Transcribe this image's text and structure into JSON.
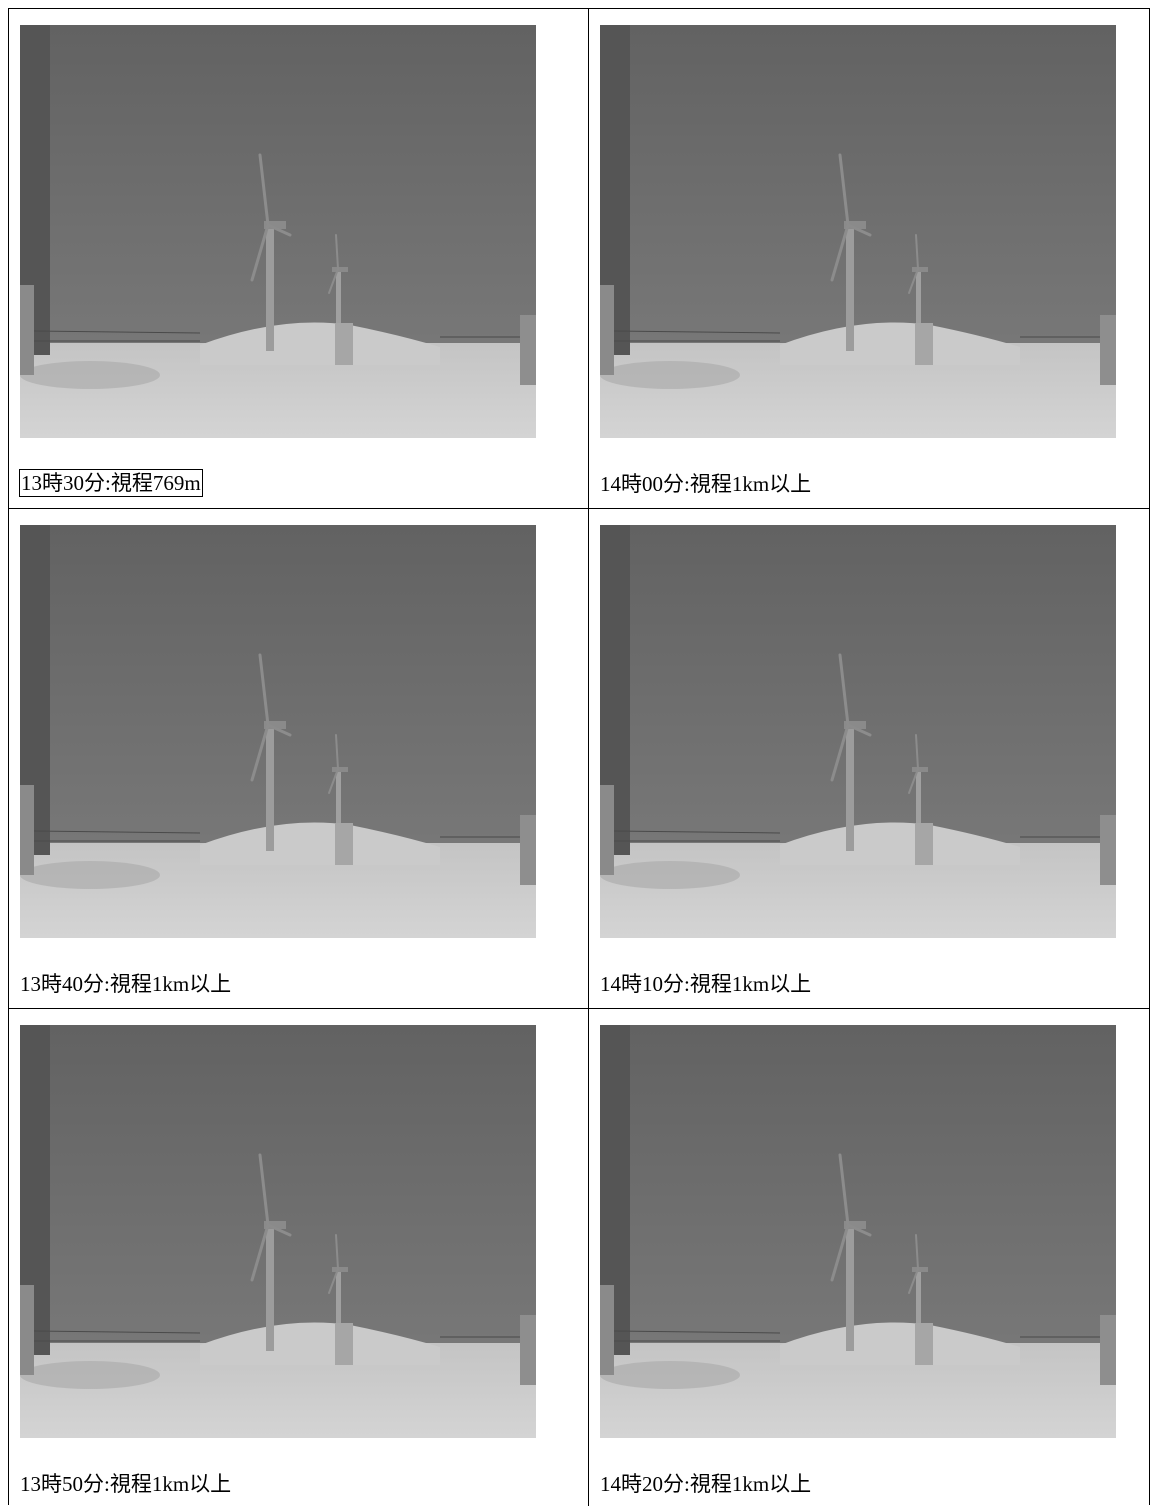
{
  "table": {
    "rows": [
      [
        {
          "caption": "13時30分:視程769m"
        },
        {
          "caption": "14時00分:視程1km以上"
        }
      ],
      [
        {
          "caption": "13時40分:視程1km以上"
        },
        {
          "caption": "14時10分:視程1km以上"
        }
      ],
      [
        {
          "caption": "13時50分:視程1km以上"
        },
        {
          "caption": "14時20分:視程1km以上"
        }
      ]
    ]
  }
}
